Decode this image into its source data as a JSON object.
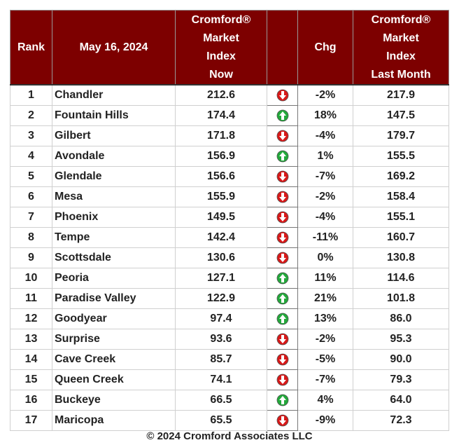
{
  "table": {
    "headers": [
      "Rank",
      "May 16, 2024",
      "Cromford®\nMarket\nIndex\nNow",
      "",
      "Chg",
      "Cromford®\nMarket\nIndex\nLast Month"
    ],
    "rows": [
      [
        "1",
        "Chandler",
        "212.6",
        "-2%",
        "217.9"
      ],
      [
        "2",
        "Fountain Hills",
        "174.4",
        "18%",
        "147.5"
      ],
      [
        "3",
        "Gilbert",
        "171.8",
        "-4%",
        "179.7"
      ],
      [
        "4",
        "Avondale",
        "156.9",
        "1%",
        "155.5"
      ],
      [
        "5",
        "Glendale",
        "156.6",
        "-7%",
        "169.2"
      ],
      [
        "6",
        "Mesa",
        "155.9",
        "-2%",
        "158.4"
      ],
      [
        "7",
        "Phoenix",
        "149.5",
        "-4%",
        "155.1"
      ],
      [
        "8",
        "Tempe",
        "142.4",
        "-11%",
        "160.7"
      ],
      [
        "9",
        "Scottsdale",
        "130.6",
        "0%",
        "130.8"
      ],
      [
        "10",
        "Peoria",
        "127.1",
        "11%",
        "114.6"
      ],
      [
        "11",
        "Paradise Valley",
        "122.9",
        "21%",
        "101.8"
      ],
      [
        "12",
        "Goodyear",
        "97.4",
        "13%",
        "86.0"
      ],
      [
        "13",
        "Surprise",
        "93.6",
        "-2%",
        "95.3"
      ],
      [
        "14",
        "Cave Creek",
        "85.7",
        "-5%",
        "90.0"
      ],
      [
        "15",
        "Queen Creek",
        "74.1",
        "-7%",
        "79.3"
      ],
      [
        "16",
        "Buckeye",
        "66.5",
        "4%",
        "64.0"
      ],
      [
        "17",
        "Maricopa",
        "65.5",
        "-9%",
        "72.3"
      ]
    ],
    "arrows": [
      "down",
      "up",
      "down",
      "up",
      "down",
      "down",
      "down",
      "down",
      "down",
      "up",
      "up",
      "up",
      "down",
      "down",
      "down",
      "up",
      "down"
    ]
  },
  "footer": "© 2024 Cromford Associates LLC"
}
